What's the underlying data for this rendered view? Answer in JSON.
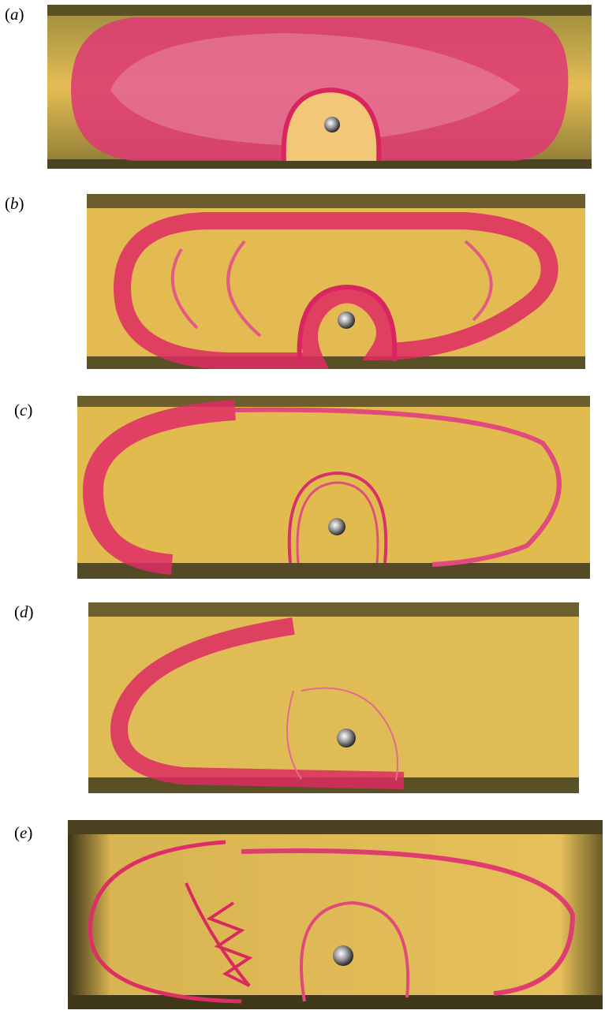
{
  "panels": [
    {
      "label_open": "(",
      "letter": "a",
      "label_close": ")"
    },
    {
      "label_open": "(",
      "letter": "b",
      "label_close": ")"
    },
    {
      "label_open": "(",
      "letter": "c",
      "label_close": ")"
    },
    {
      "label_open": "(",
      "letter": "d",
      "label_close": ")"
    },
    {
      "label_open": "(",
      "letter": "e",
      "label_close": ")"
    }
  ],
  "colors": {
    "fluid": "#e3b84a",
    "dye": "#e0245e",
    "rail": "#5b5128",
    "background": "#ffffff"
  },
  "icons": {
    "rod": "metal-rod-icon"
  }
}
